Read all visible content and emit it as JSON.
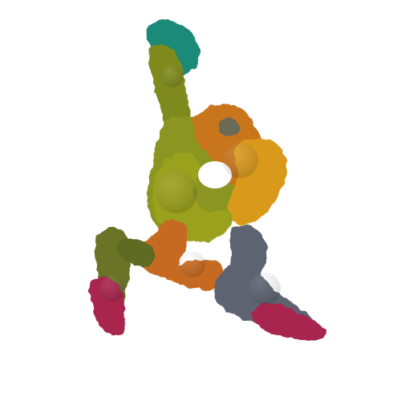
{
  "image": {
    "kind": "molecular-surface-render",
    "background": "#ffffff",
    "palette": {
      "teal": "#1f8a78",
      "olive": "#7e8a1c",
      "yellow_green": "#9aa11e",
      "orange": "#c9741f",
      "amber": "#d99a1a",
      "slate": "#5d6470",
      "crimson": "#a8284e",
      "dark_olive": "#5f6b24"
    }
  }
}
